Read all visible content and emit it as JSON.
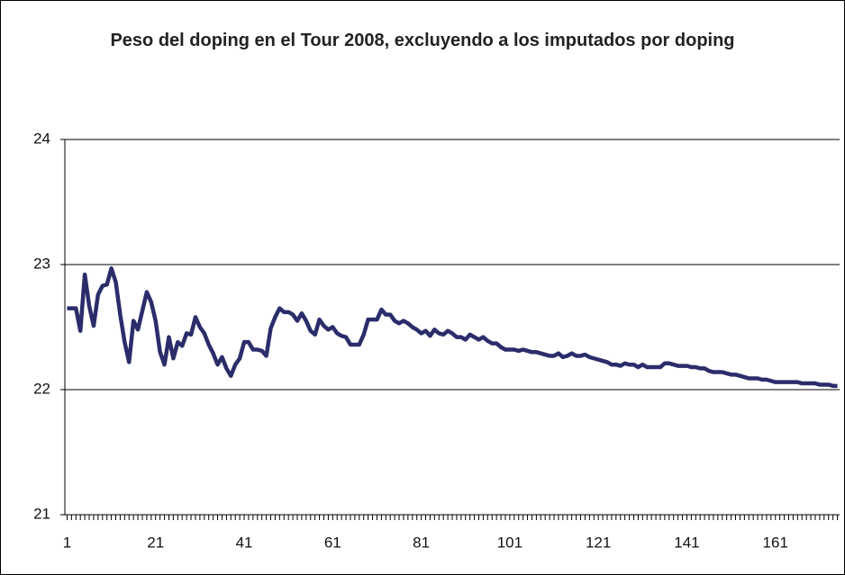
{
  "chart_data": {
    "type": "line",
    "title": "Peso del doping en el Tour 2008, excluyendo a los imputados por doping",
    "x": [
      1,
      2,
      3,
      4,
      5,
      6,
      7,
      8,
      9,
      10,
      11,
      12,
      13,
      14,
      15,
      16,
      17,
      18,
      19,
      20,
      21,
      22,
      23,
      24,
      25,
      26,
      27,
      28,
      29,
      30,
      31,
      32,
      33,
      34,
      35,
      36,
      37,
      38,
      39,
      40,
      41,
      42,
      43,
      44,
      45,
      46,
      47,
      48,
      49,
      50,
      51,
      52,
      53,
      54,
      55,
      56,
      57,
      58,
      59,
      60,
      61,
      62,
      63,
      64,
      65,
      66,
      67,
      68,
      69,
      70,
      71,
      72,
      73,
      74,
      75,
      76,
      77,
      78,
      79,
      80,
      81,
      82,
      83,
      84,
      85,
      86,
      87,
      88,
      89,
      90,
      91,
      92,
      93,
      94,
      95,
      96,
      97,
      98,
      99,
      100,
      101,
      102,
      103,
      104,
      105,
      106,
      107,
      108,
      109,
      110,
      111,
      112,
      113,
      114,
      115,
      116,
      117,
      118,
      119,
      120,
      121,
      122,
      123,
      124,
      125,
      126,
      127,
      128,
      129,
      130,
      131,
      132,
      133,
      134,
      135,
      136,
      137,
      138,
      139,
      140,
      141,
      142,
      143,
      144,
      145,
      146,
      147,
      148,
      149,
      150,
      151,
      152,
      153,
      154,
      155,
      156,
      157,
      158,
      159,
      160,
      161,
      162,
      163,
      164,
      165,
      166,
      167,
      168,
      169,
      170,
      171,
      172,
      173,
      174,
      175
    ],
    "series": [
      {
        "color": "#2b2d6b",
        "values": [
          22.65,
          22.65,
          22.65,
          22.47,
          22.92,
          22.67,
          22.51,
          22.76,
          22.83,
          22.84,
          22.97,
          22.86,
          22.6,
          22.38,
          22.22,
          22.55,
          22.48,
          22.63,
          22.78,
          22.7,
          22.55,
          22.3,
          22.2,
          22.42,
          22.25,
          22.38,
          22.35,
          22.45,
          22.44,
          22.58,
          22.5,
          22.45,
          22.36,
          22.29,
          22.2,
          22.26,
          22.17,
          22.11,
          22.2,
          22.25,
          22.38,
          22.38,
          22.32,
          22.32,
          22.31,
          22.27,
          22.49,
          22.58,
          22.65,
          22.62,
          22.62,
          22.6,
          22.55,
          22.61,
          22.55,
          22.47,
          22.44,
          22.56,
          22.51,
          22.48,
          22.5,
          22.45,
          22.43,
          22.42,
          22.36,
          22.36,
          22.36,
          22.44,
          22.56,
          22.56,
          22.56,
          22.64,
          22.6,
          22.6,
          22.55,
          22.53,
          22.55,
          22.53,
          22.5,
          22.48,
          22.45,
          22.47,
          22.43,
          22.48,
          22.45,
          22.44,
          22.47,
          22.45,
          22.42,
          22.42,
          22.4,
          22.44,
          22.42,
          22.4,
          22.42,
          22.39,
          22.37,
          22.37,
          22.34,
          22.32,
          22.32,
          22.32,
          22.31,
          22.32,
          22.31,
          22.3,
          22.3,
          22.29,
          22.28,
          22.27,
          22.27,
          22.29,
          22.26,
          22.27,
          22.29,
          22.27,
          22.27,
          22.28,
          22.26,
          22.25,
          22.24,
          22.23,
          22.22,
          22.2,
          22.2,
          22.19,
          22.21,
          22.2,
          22.2,
          22.18,
          22.2,
          22.18,
          22.18,
          22.18,
          22.18,
          22.21,
          22.21,
          22.2,
          22.19,
          22.19,
          22.19,
          22.18,
          22.18,
          22.17,
          22.17,
          22.15,
          22.14,
          22.14,
          22.14,
          22.13,
          22.12,
          22.12,
          22.11,
          22.1,
          22.09,
          22.09,
          22.09,
          22.08,
          22.08,
          22.07,
          22.06,
          22.06,
          22.06,
          22.06,
          22.06,
          22.06,
          22.05,
          22.05,
          22.05,
          22.05,
          22.04,
          22.04,
          22.04,
          22.03,
          22.03
        ]
      }
    ],
    "xlim": [
      0.5,
      175.5
    ],
    "xticks": [
      1,
      21,
      41,
      61,
      81,
      101,
      121,
      141,
      161
    ],
    "ylim": [
      21,
      24
    ],
    "yticks": [
      21,
      22,
      23,
      24
    ],
    "grid": true
  }
}
